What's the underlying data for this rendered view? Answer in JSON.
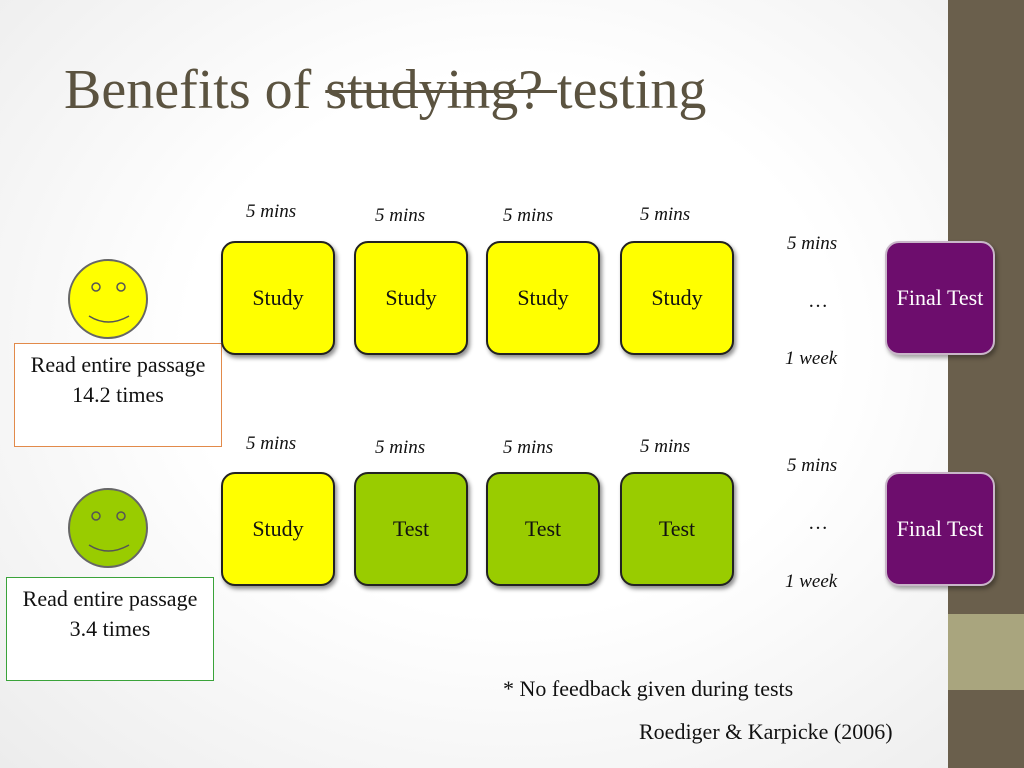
{
  "slide": {
    "title_prefix": "Benefits of ",
    "title_struck": "studying? ",
    "title_suffix": "testing"
  },
  "rows": [
    {
      "interval_labels": [
        "5 mins",
        "5 mins",
        "5 mins",
        "5 mins"
      ],
      "steps": [
        {
          "label": "Study",
          "kind": "study"
        },
        {
          "label": "Study",
          "kind": "study"
        },
        {
          "label": "Study",
          "kind": "study"
        },
        {
          "label": "Study",
          "kind": "study"
        }
      ],
      "delay": {
        "top": "5 mins",
        "ellipsis": "…",
        "bottom": "1 week"
      },
      "final": "Final Test",
      "face_color": "#ffff00",
      "result_note": "Read entire passage 14.2 times"
    },
    {
      "interval_labels": [
        "5 mins",
        "5 mins",
        "5 mins",
        "5 mins"
      ],
      "steps": [
        {
          "label": "Study",
          "kind": "study"
        },
        {
          "label": "Test",
          "kind": "test"
        },
        {
          "label": "Test",
          "kind": "test"
        },
        {
          "label": "Test",
          "kind": "test"
        }
      ],
      "delay": {
        "top": "5 mins",
        "ellipsis": "…",
        "bottom": "1 week"
      },
      "final": "Final Test",
      "face_color": "#99cc00",
      "result_note": "Read entire passage 3.4 times"
    }
  ],
  "footnote": "* No feedback given during tests",
  "citation": "Roediger & Karpicke (2006)",
  "colors": {
    "study": "#ffff00",
    "test": "#99cc00",
    "final": "#6d0d6d",
    "title": "#5b5340",
    "sidebar": "#6a5f4c",
    "sidebar_accent": "#a9a57e"
  }
}
